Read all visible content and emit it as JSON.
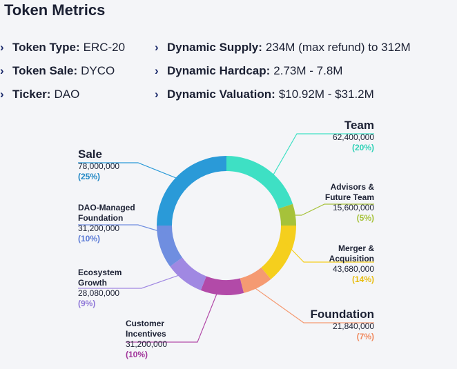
{
  "title": "Token Metrics",
  "metrics_left": [
    {
      "label": "Token Type:",
      "value": "ERC-20"
    },
    {
      "label": "Token Sale:",
      "value": "DYCO"
    },
    {
      "label": "Ticker:",
      "value": "DAO"
    }
  ],
  "metrics_right": [
    {
      "label": "Dynamic Supply:",
      "value": "234M (max refund) to 312M"
    },
    {
      "label": "Dynamic Hardcap:",
      "value": "2.73M - 7.8M"
    },
    {
      "label": "Dynamic Valuation:",
      "value": "$10.92M - $31.2M"
    }
  ],
  "chart_data": {
    "type": "pie",
    "donut": true,
    "slices": [
      {
        "name": "Team",
        "value": 62400000,
        "value_label": "62,400,000",
        "pct_label": "(20%)",
        "color": "#3ee0c4",
        "pct_color": "#2fd1b6"
      },
      {
        "name": "Advisors & Future Team",
        "value": 15600000,
        "value_label": "15,600,000",
        "pct_label": "(5%)",
        "color": "#a6c23a",
        "pct_color": "#a6c23a"
      },
      {
        "name": "Merger & Acquisition",
        "value": 43680000,
        "value_label": "43,680,000",
        "pct_label": "(14%)",
        "color": "#f5cf1d",
        "pct_color": "#e8bd10"
      },
      {
        "name": "Foundation",
        "value": 21840000,
        "value_label": "21,840,000",
        "pct_label": "(7%)",
        "color": "#f59a72",
        "pct_color": "#f08a5f"
      },
      {
        "name": "Customer Incentives",
        "value": 31200000,
        "value_label": "31,200,000",
        "pct_label": "(10%)",
        "color": "#b24aa8",
        "pct_color": "#a1359a"
      },
      {
        "name": "Ecosystem Growth",
        "value": 28080000,
        "value_label": "28,080,000",
        "pct_label": "(9%)",
        "color": "#a088e2",
        "pct_color": "#8f78d8"
      },
      {
        "name": "DAO-Managed Foundation",
        "value": 31200000,
        "value_label": "31,200,000",
        "pct_label": "(10%)",
        "color": "#6f8ee0",
        "pct_color": "#5b7bd6"
      },
      {
        "name": "Sale",
        "value": 78000000,
        "value_label": "78,000,000",
        "pct_label": "(25%)",
        "color": "#2a9ad8",
        "pct_color": "#1f86c4"
      }
    ]
  }
}
